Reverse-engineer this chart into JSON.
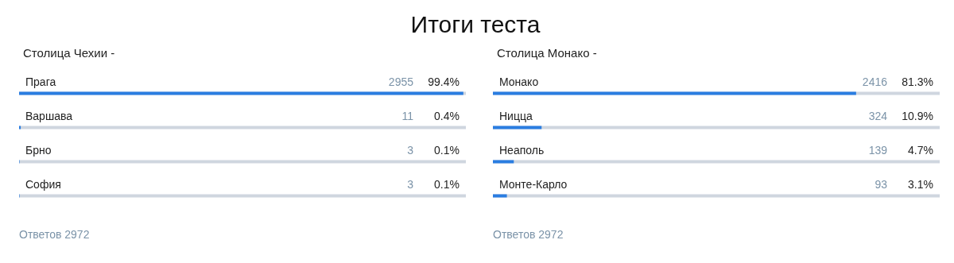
{
  "chart_data": [
    {
      "type": "bar",
      "orientation": "horizontal",
      "title": "Итоги теста",
      "subtitle": "Столица Чехии -",
      "categories": [
        "Прага",
        "Варшава",
        "Брно",
        "София"
      ],
      "values": [
        2955,
        11,
        3,
        3
      ],
      "data_labels": true,
      "color": "#2a7de1",
      "annotations": [
        "Ответов 2972",
        "99.4%",
        "0.4%",
        "0.1%",
        "0.1%"
      ]
    },
    {
      "type": "bar",
      "orientation": "horizontal",
      "subtitle": "Столица Монако -",
      "categories": [
        "Монако",
        "Ницца",
        "Неаполь",
        "Монте-Карло"
      ],
      "values": [
        2416,
        324,
        139,
        93
      ],
      "data_labels": true,
      "color": "#2a7de1",
      "annotations": [
        "Ответов 2972",
        "81.3%",
        "10.9%",
        "4.7%",
        "3.1%"
      ]
    }
  ]
}
